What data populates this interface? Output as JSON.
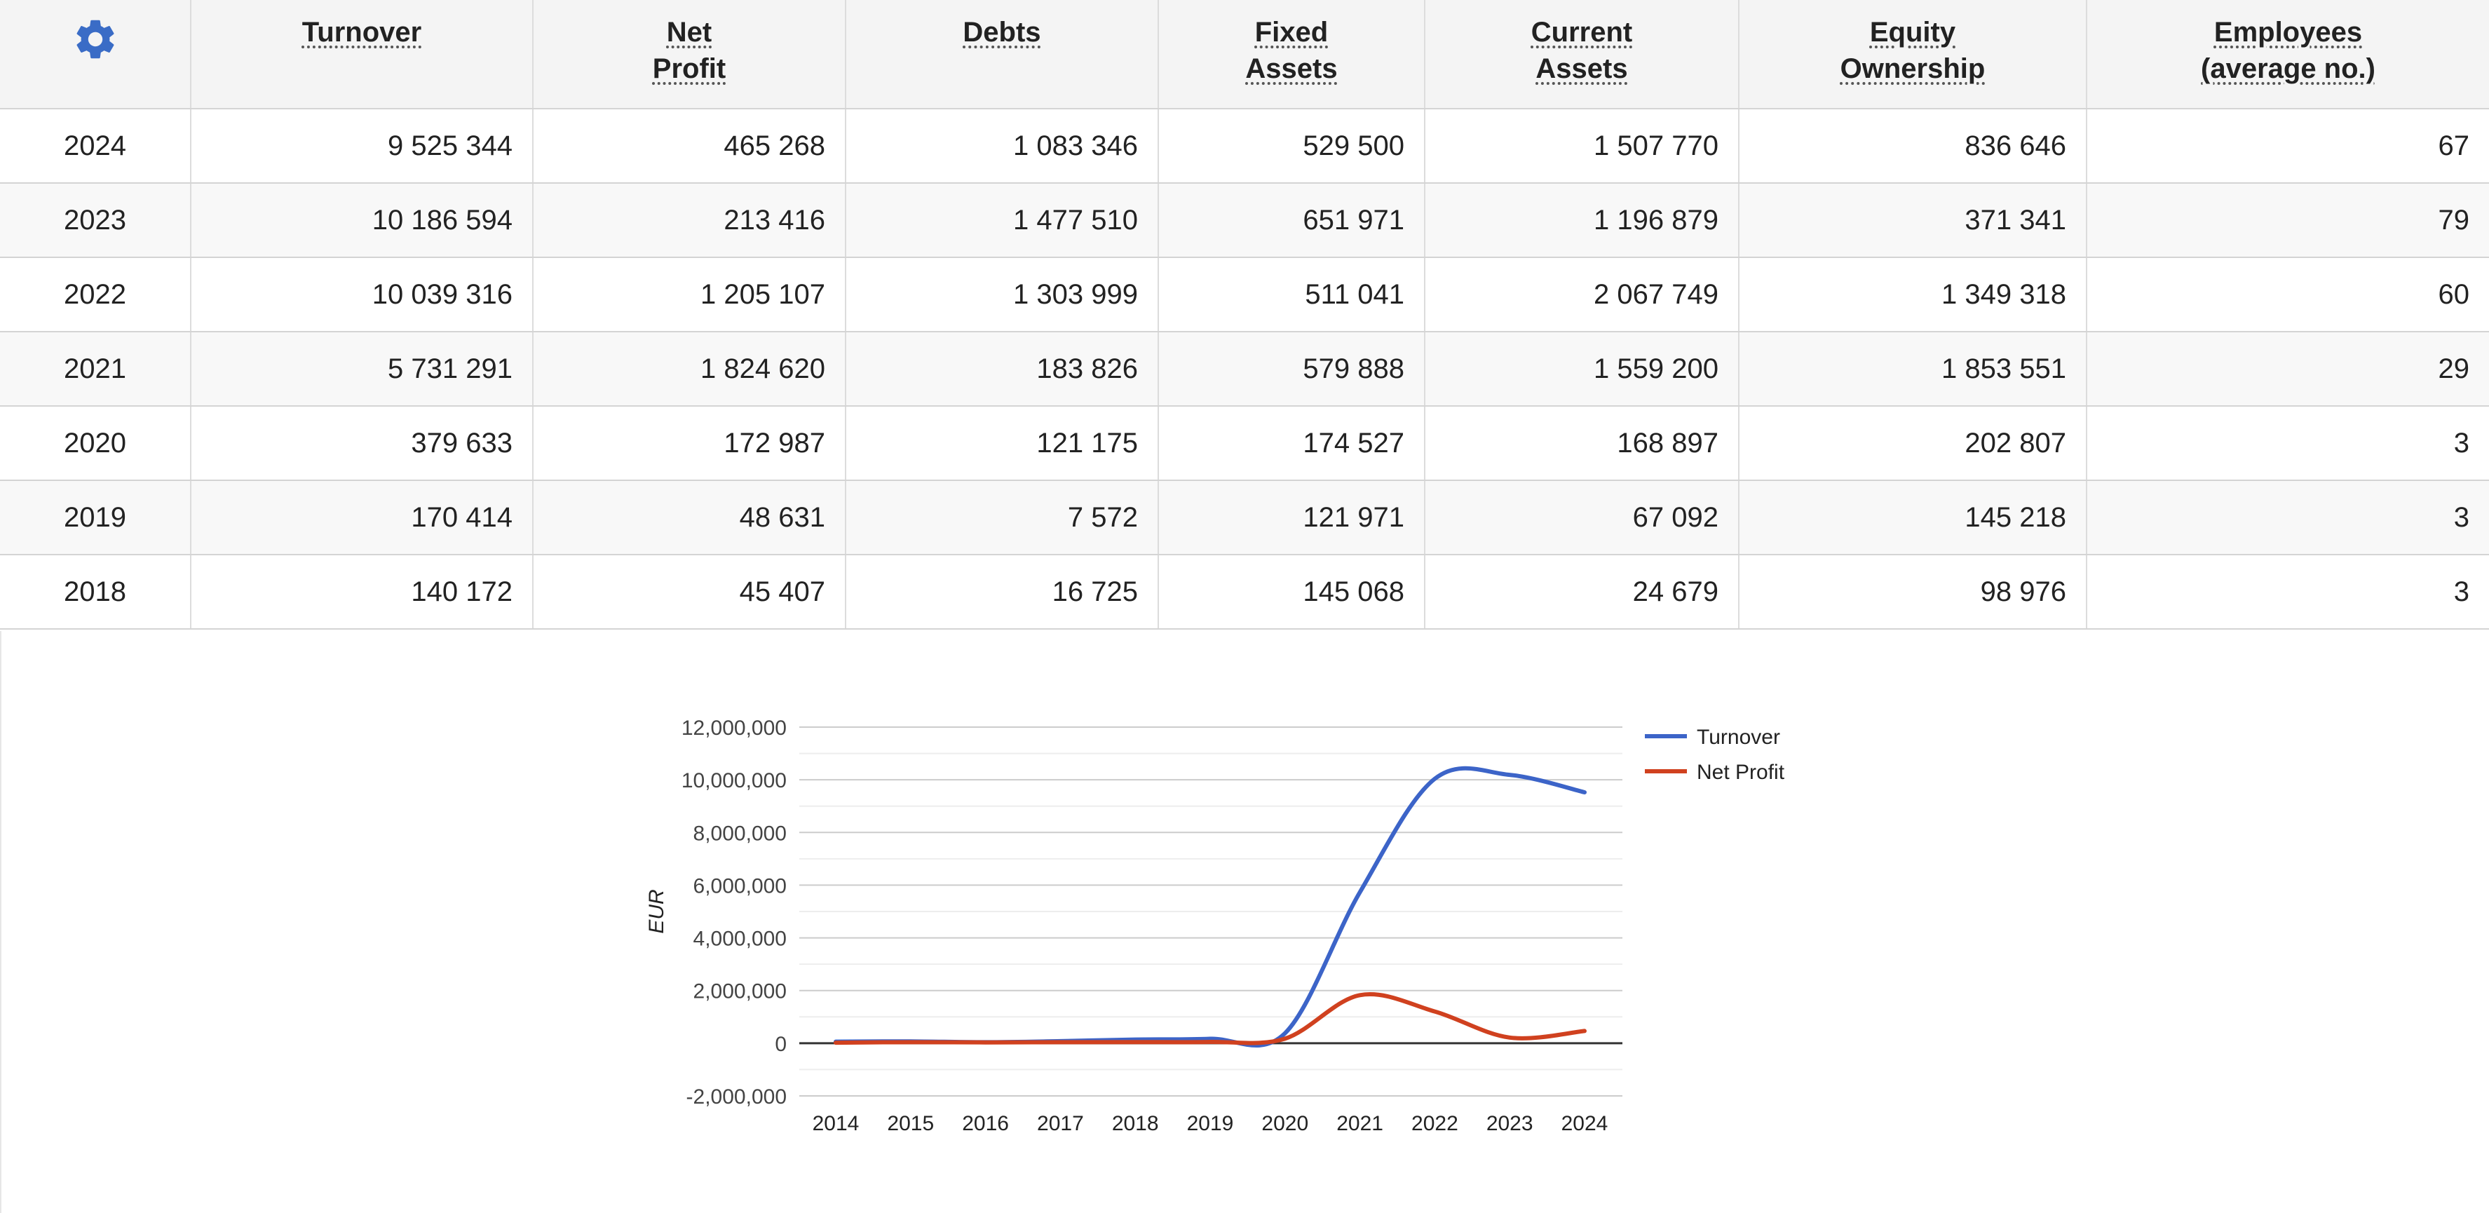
{
  "table": {
    "columns": [
      {
        "key": "settings",
        "label": ""
      },
      {
        "key": "turnover",
        "label": "Turnover"
      },
      {
        "key": "net_profit",
        "label": "Net\nProfit"
      },
      {
        "key": "debts",
        "label": "Debts"
      },
      {
        "key": "fixed_assets",
        "label": "Fixed\nAssets"
      },
      {
        "key": "current_assets",
        "label": "Current\nAssets"
      },
      {
        "key": "equity_ownership",
        "label": "Equity\nOwnership"
      },
      {
        "key": "employees",
        "label": "Employees\n(average no.)"
      }
    ],
    "rows": [
      [
        "2024",
        "9 525 344",
        "465 268",
        "1 083 346",
        "529 500",
        "1 507 770",
        "836 646",
        "67"
      ],
      [
        "2023",
        "10 186 594",
        "213 416",
        "1 477 510",
        "651 971",
        "1 196 879",
        "371 341",
        "79"
      ],
      [
        "2022",
        "10 039 316",
        "1 205 107",
        "1 303 999",
        "511 041",
        "2 067 749",
        "1 349 318",
        "60"
      ],
      [
        "2021",
        "5 731 291",
        "1 824 620",
        "183 826",
        "579 888",
        "1 559 200",
        "1 853 551",
        "29"
      ],
      [
        "2020",
        "379 633",
        "172 987",
        "121 175",
        "174 527",
        "168 897",
        "202 807",
        "3"
      ],
      [
        "2019",
        "170 414",
        "48 631",
        "7 572",
        "121 971",
        "67 092",
        "145 218",
        "3"
      ],
      [
        "2018",
        "140 172",
        "45 407",
        "16 725",
        "145 068",
        "24 679",
        "98 976",
        "3"
      ]
    ],
    "settings_icon": "gear-icon",
    "icon_color": "#3a6cc6"
  },
  "chart_data": {
    "type": "line",
    "title": "",
    "xlabel": "",
    "ylabel": "EUR",
    "x": [
      "2014",
      "2015",
      "2016",
      "2017",
      "2018",
      "2019",
      "2020",
      "2021",
      "2022",
      "2023",
      "2024"
    ],
    "ylim": [
      -2000000,
      12000000
    ],
    "yticks": [
      -2000000,
      0,
      2000000,
      4000000,
      6000000,
      8000000,
      10000000,
      12000000
    ],
    "ytick_labels": [
      "-2,000,000",
      "0",
      "2,000,000",
      "4,000,000",
      "6,000,000",
      "8,000,000",
      "10,000,000",
      "12,000,000"
    ],
    "grid": true,
    "legend_position": "right",
    "series": [
      {
        "name": "Turnover",
        "color": "#3c64c8",
        "values": [
          60000,
          70000,
          40000,
          80000,
          140172,
          170414,
          379633,
          5731291,
          10039316,
          10186594,
          9525344
        ]
      },
      {
        "name": "Net Profit",
        "color": "#d0411f",
        "values": [
          20000,
          40000,
          30000,
          40000,
          45407,
          48631,
          172987,
          1824620,
          1205107,
          213416,
          465268
        ]
      }
    ]
  }
}
